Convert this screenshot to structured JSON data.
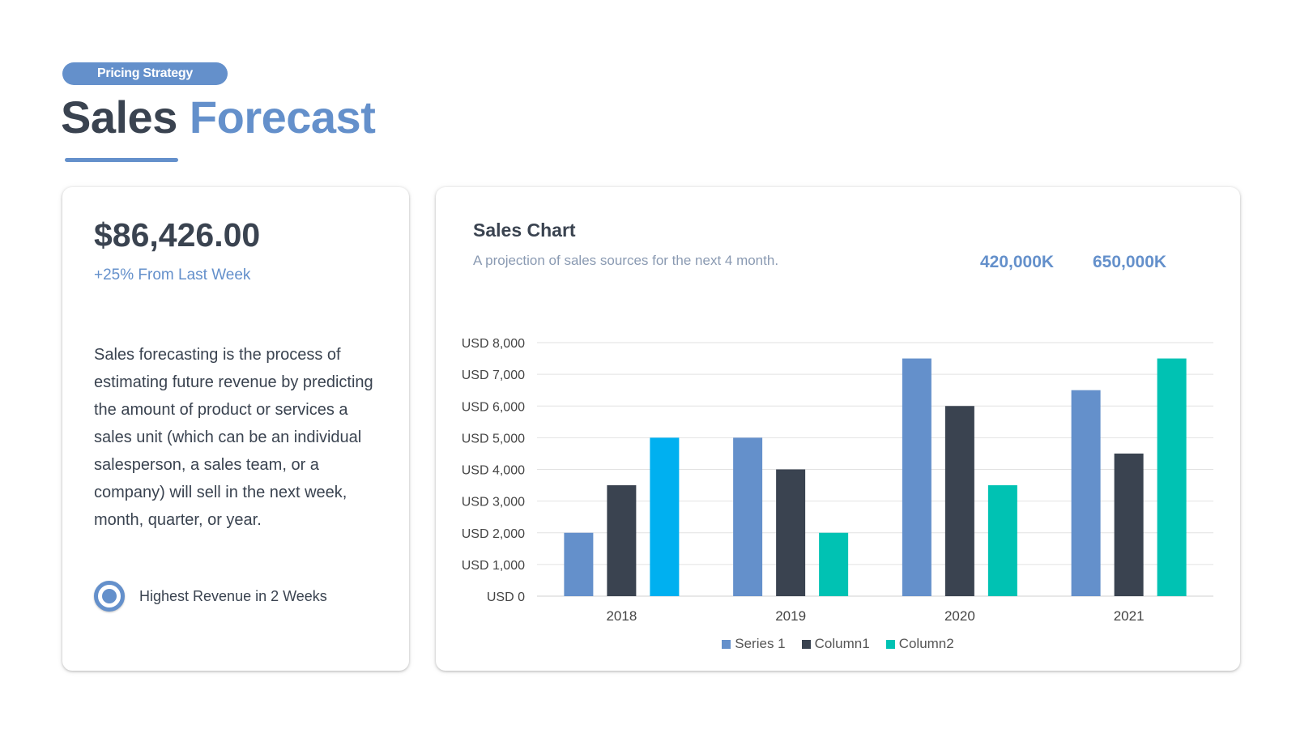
{
  "header": {
    "badge": "Pricing Strategy",
    "title_part1": "Sales",
    "title_part2": "Forecast"
  },
  "summary_card": {
    "amount": "$86,426.00",
    "change": "+25% From Last Week",
    "description": "Sales forecasting is the process of estimating future revenue by predicting the amount of product or services a sales unit (which can be an individual salesperson, a sales team, or a company) will sell in the next week, month, quarter, or year.",
    "highlight_icon": "target-icon",
    "highlight_label": "Highest Revenue in 2 Weeks"
  },
  "chart_card": {
    "title": "Sales Chart",
    "subtitle": "A projection of sales sources for the next 4 month.",
    "kpi_1": "420,000K",
    "kpi_2": "650,000K"
  },
  "colors": {
    "accent": "#6490cb",
    "dark": "#3a4350",
    "series_1": "#6490cb",
    "column_1": "#3a4350",
    "column_2": "#00c2b3",
    "column_2_2018": "#00b0f0"
  },
  "chart_data": {
    "type": "bar",
    "categories": [
      "2018",
      "2019",
      "2020",
      "2021"
    ],
    "series": [
      {
        "name": "Series 1",
        "values": [
          2000,
          5000,
          7500,
          6500
        ]
      },
      {
        "name": "Column1",
        "values": [
          3500,
          4000,
          6000,
          4500
        ]
      },
      {
        "name": "Column2",
        "values": [
          5000,
          2000,
          3500,
          7500
        ]
      }
    ],
    "y_tick_labels": [
      "USD 0",
      "USD 1,000",
      "USD 2,000",
      "USD 3,000",
      "USD 4,000",
      "USD 5,000",
      "USD 6,000",
      "USD 7,000",
      "USD 8,000"
    ],
    "ylim": [
      0,
      8000
    ],
    "grid": true,
    "legend": "bottom-center"
  }
}
